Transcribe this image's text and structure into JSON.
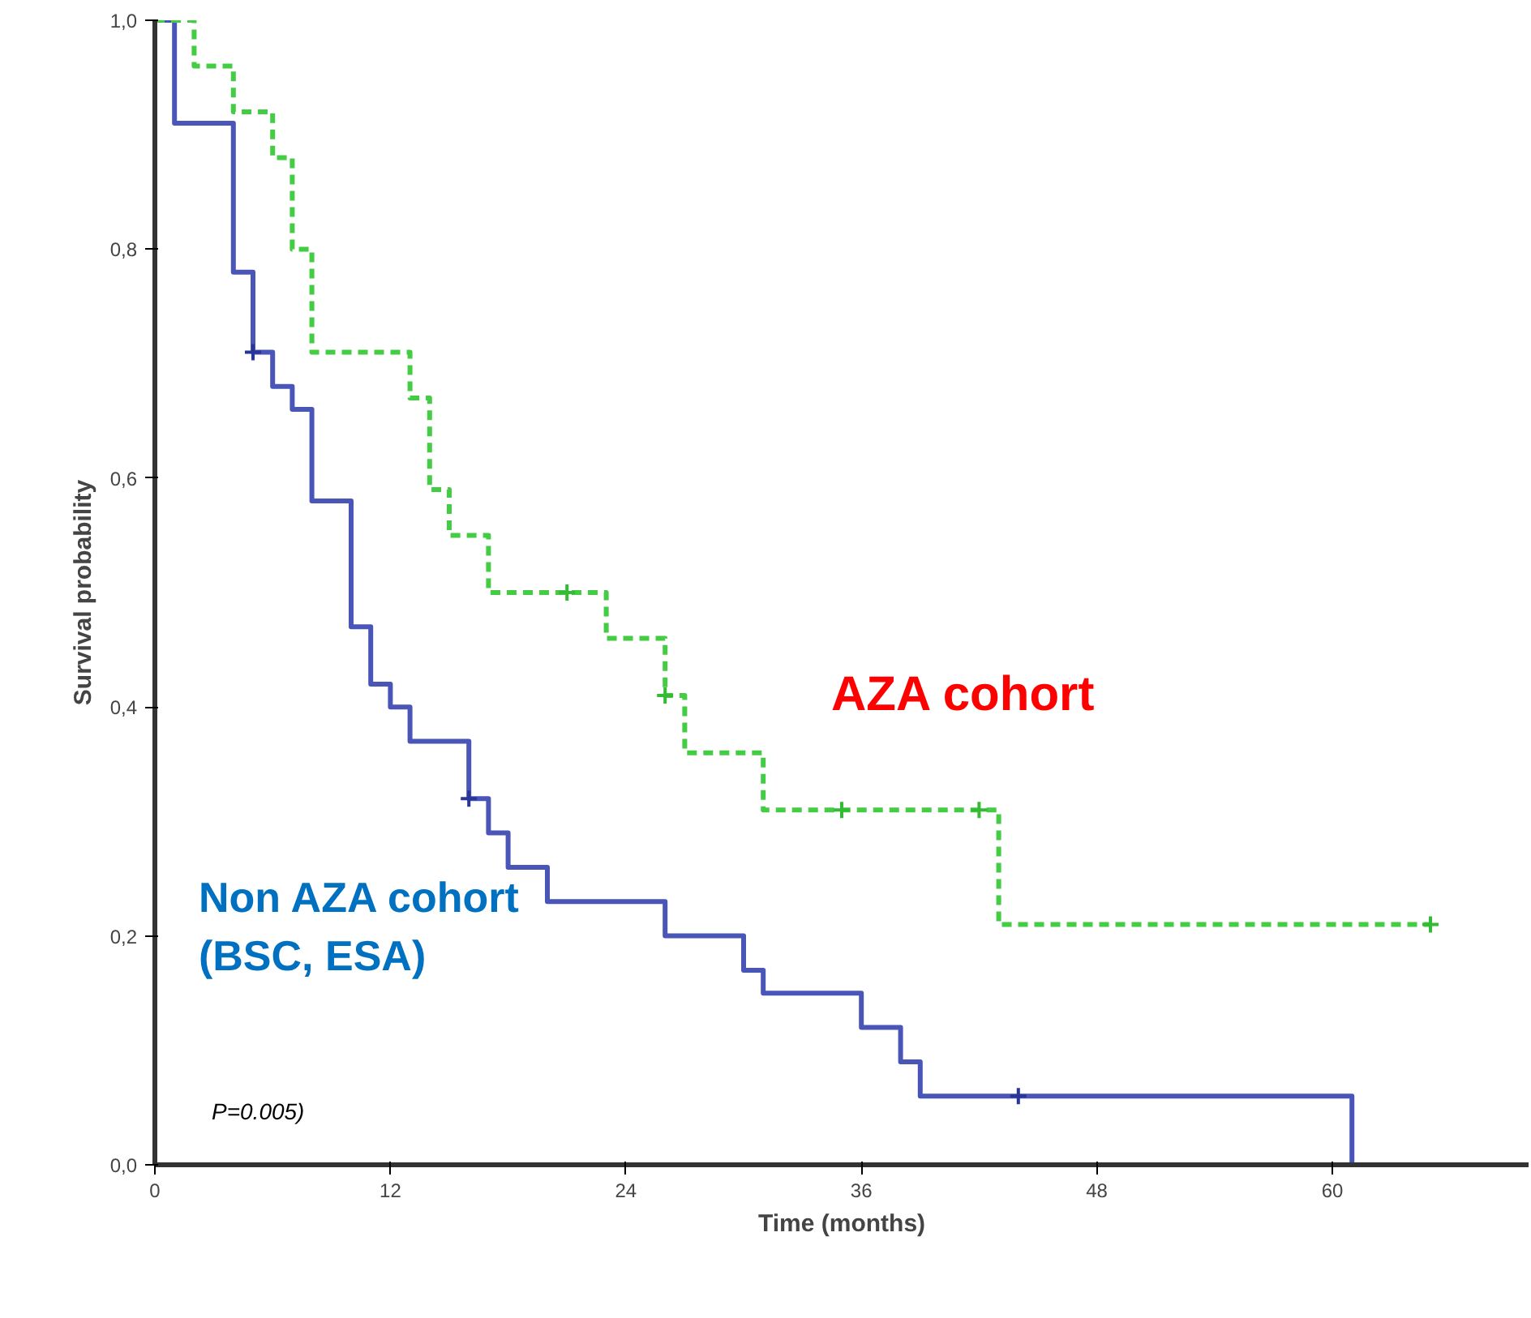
{
  "chart_data": {
    "type": "step",
    "xlabel": "Time (months)",
    "ylabel": "Survival probability",
    "xlim": [
      0,
      70
    ],
    "ylim": [
      0,
      1.0
    ],
    "xticks": [
      0,
      12,
      24,
      36,
      48,
      60
    ],
    "yticks": [
      {
        "value": 0,
        "label": "0,0"
      },
      {
        "value": 0.2,
        "label": "0,2"
      },
      {
        "value": 0.4,
        "label": "0,4"
      },
      {
        "value": 0.6,
        "label": "0,6"
      },
      {
        "value": 0.8,
        "label": "0,8"
      },
      {
        "value": 1.0,
        "label": "1,0"
      }
    ],
    "grid": false,
    "series": [
      {
        "color": "#4a55b8",
        "line_style": "solid",
        "x": [
          0,
          1,
          4,
          5,
          6,
          7,
          8,
          10,
          11,
          12,
          13,
          16,
          17,
          18,
          20,
          26,
          30,
          31,
          36,
          38,
          39,
          61
        ],
        "values": [
          1.0,
          0.91,
          0.78,
          0.71,
          0.68,
          0.66,
          0.58,
          0.47,
          0.42,
          0.4,
          0.37,
          0.32,
          0.29,
          0.26,
          0.23,
          0.2,
          0.17,
          0.15,
          0.12,
          0.09,
          0.06,
          0
        ]
      },
      {
        "color": "#44cc44",
        "line_style": "dashed",
        "x": [
          0,
          2,
          4,
          6,
          7,
          8,
          13,
          14,
          15,
          17,
          23,
          26,
          27,
          31,
          43,
          65
        ],
        "values": [
          1.0,
          0.96,
          0.92,
          0.88,
          0.8,
          0.71,
          0.67,
          0.59,
          0.55,
          0.5,
          0.46,
          0.41,
          0.36,
          0.31,
          0.21,
          0.21
        ]
      },
      {
        "type": "scatter",
        "marker": "cross",
        "color": "#2a3598",
        "x": [
          5,
          16,
          44
        ],
        "values": [
          0.71,
          0.32,
          0.06
        ]
      },
      {
        "type": "scatter",
        "marker": "cross",
        "color": "#33bb33",
        "x": [
          21,
          26,
          35,
          42,
          65
        ],
        "values": [
          0.5,
          0.41,
          0.31,
          0.31,
          0.21
        ]
      }
    ],
    "annotations": [
      "AZA cohort",
      "Non AZA cohort\n(BSC, ESA)",
      "P=0.005)"
    ]
  }
}
